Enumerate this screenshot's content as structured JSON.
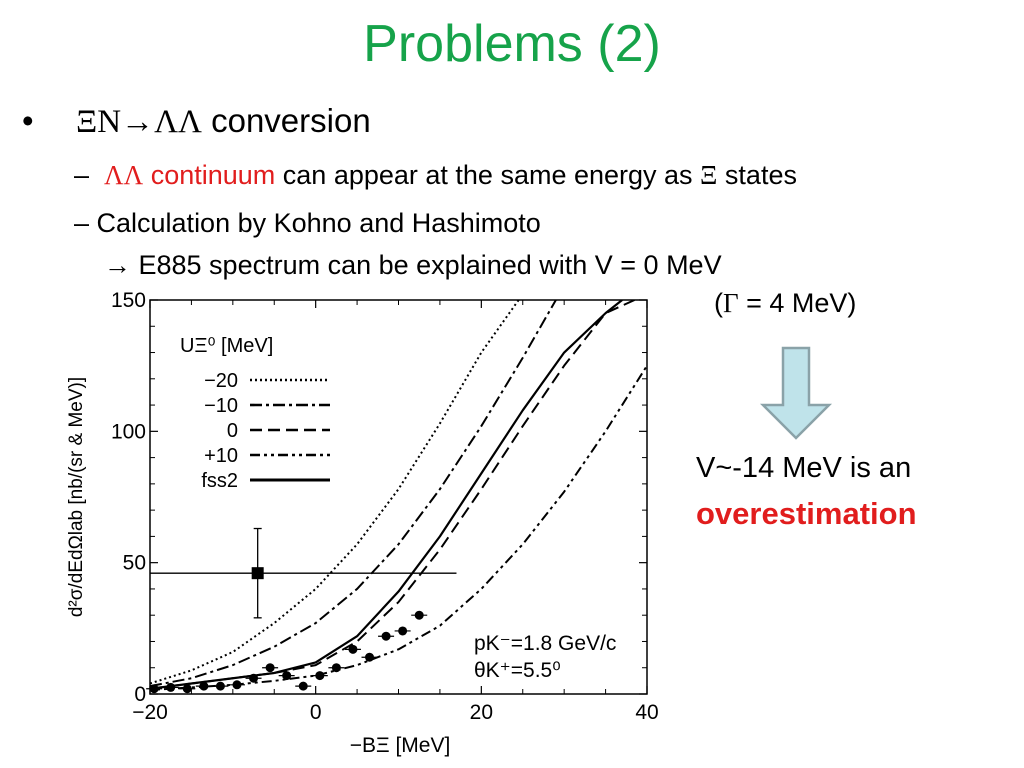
{
  "slide": {
    "title": "Problems (2)",
    "bullet_marker": "•",
    "bullet_greek": "ΞN",
    "bullet_arrow": "→",
    "bullet_greek2": "ΛΛ",
    "bullet_text": " conversion",
    "sub1_dash": "–",
    "sub1_greek": "ΛΛ",
    "sub1_red": " continuum",
    "sub1_text": " can appear at the same energy as ",
    "sub1_greek2": "Ξ",
    "sub1_tail": " states",
    "sub2_text": "– Calculation by Kohno and Hashimoto",
    "sub3_text": "→ E885 spectrum can be explained with V = 0 MeV",
    "sub4_open": "(",
    "sub4_greek": "Γ",
    "sub4_text": " = 4 MeV)",
    "note_line1": "V~-14 MeV is an",
    "note_line2": "overestimation",
    "arrow_fill": "#bfe3ea",
    "arrow_stroke": "#8aa2a8"
  },
  "chart_data": {
    "type": "line",
    "xlabel": "−BΞ [MeV]",
    "ylabel": "d²σ/dEdΩlab [nb/(sr & MeV)]",
    "xlim": [
      -20,
      40
    ],
    "ylim": [
      0,
      150
    ],
    "xticks": [
      -20,
      0,
      20,
      40
    ],
    "yticks": [
      0,
      50,
      100,
      150
    ],
    "legend_title": "UΞ⁰ [MeV]",
    "legend_position": "top-left",
    "series": [
      {
        "name": "−20",
        "style": "dotted",
        "x": [
          -20,
          -15,
          -10,
          -5,
          0,
          5,
          10,
          15,
          20,
          24.5
        ],
        "y": [
          4,
          9,
          16,
          27,
          40,
          57,
          78,
          103,
          130,
          150
        ]
      },
      {
        "name": "−10",
        "style": "dashdot",
        "x": [
          -20,
          -15,
          -10,
          -5,
          0,
          5,
          10,
          15,
          20,
          25,
          29
        ],
        "y": [
          3,
          6,
          11,
          18,
          27,
          40,
          57,
          78,
          102,
          128,
          150
        ]
      },
      {
        "name": "0",
        "style": "dashed",
        "x": [
          -20,
          -15,
          -10,
          -5,
          0,
          5,
          10,
          15,
          20,
          25,
          30,
          35,
          38.5
        ],
        "y": [
          2,
          4,
          6,
          8,
          11,
          20,
          35,
          55,
          78,
          102,
          125,
          145,
          150
        ]
      },
      {
        "name": "+10",
        "style": "dashdotdot",
        "x": [
          -20,
          -15,
          -10,
          -5,
          0,
          5,
          10,
          15,
          20,
          25,
          30,
          35,
          40
        ],
        "y": [
          1.5,
          2.5,
          3.5,
          5,
          7,
          11,
          17,
          26,
          40,
          57,
          77,
          100,
          125
        ]
      },
      {
        "name": "fss2",
        "style": "solid",
        "x": [
          -20,
          -15,
          -10,
          -5,
          0,
          5,
          10,
          15,
          20,
          25,
          30,
          35,
          37
        ],
        "y": [
          2,
          4,
          6,
          8,
          12,
          22,
          39,
          60,
          84,
          108,
          130,
          145,
          150
        ]
      }
    ],
    "data_points": [
      {
        "x": -19.5,
        "y": 2
      },
      {
        "x": -17.5,
        "y": 2.5
      },
      {
        "x": -15.5,
        "y": 2
      },
      {
        "x": -13.5,
        "y": 3
      },
      {
        "x": -11.5,
        "y": 3
      },
      {
        "x": -9.5,
        "y": 3.5
      },
      {
        "x": -7.5,
        "y": 6
      },
      {
        "x": -5.5,
        "y": 10
      },
      {
        "x": -3.5,
        "y": 7
      },
      {
        "x": -1.5,
        "y": 3
      },
      {
        "x": 0.5,
        "y": 7
      },
      {
        "x": 2.5,
        "y": 10
      },
      {
        "x": 4.5,
        "y": 17
      },
      {
        "x": 6.5,
        "y": 14
      },
      {
        "x": 8.5,
        "y": 22
      },
      {
        "x": 10.5,
        "y": 24
      },
      {
        "x": 12.5,
        "y": 30
      }
    ],
    "square_point": {
      "x": -7,
      "y": 46,
      "yerr": 17
    },
    "horizontal_line": {
      "y": 46,
      "x0": -20,
      "x1": 17
    },
    "annotation_lines": [
      "pK⁻=1.8 GeV/c",
      "θK⁺=5.5⁰"
    ]
  }
}
